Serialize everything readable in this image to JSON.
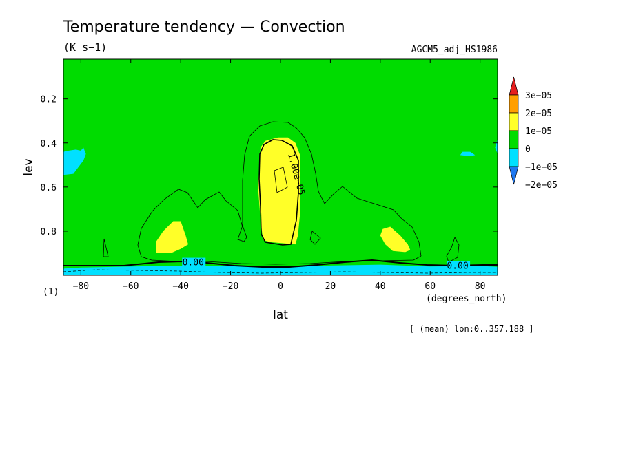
{
  "chart_data": {
    "type": "heatmap",
    "title": "Temperature tendency — Convection",
    "units": "(K s−1)",
    "dataset": "AGCM5_adj_HS1986",
    "xlabel": "lat",
    "xunits": "(degrees_north)",
    "ylabel": "lev",
    "yunits": "(1)",
    "footnote": "[ (mean) lon:0..357.188 ]",
    "xlim": [
      -87,
      87
    ],
    "ylim": [
      1.0,
      0.02
    ],
    "x_ticks": [
      -80,
      -60,
      -40,
      -20,
      0,
      20,
      40,
      60,
      80
    ],
    "x_tick_labels": [
      "−80",
      "−60",
      "−40",
      "−20",
      "0",
      "20",
      "40",
      "60",
      "80"
    ],
    "y_ticks": [
      0.2,
      0.4,
      0.6,
      0.8
    ],
    "y_tick_labels": [
      "0.2",
      "0.4",
      "0.6",
      "0.8"
    ],
    "colorbar": {
      "levels": [
        -2e-05,
        -1e-05,
        0,
        1e-05,
        2e-05,
        3e-05
      ],
      "labels": [
        "3e−05",
        "2e−05",
        "1e−05",
        "0",
        "−1e−05",
        "−2e−05"
      ],
      "colors": [
        "#1e78f0",
        "#00e0ff",
        "#00dc00",
        "#ffff28",
        "#ff9f00",
        "#e61e1e"
      ]
    },
    "contour_labels": [
      {
        "text": "1.00e−05",
        "lat": 3,
        "lev": 0.45
      },
      {
        "text": "0.00",
        "lat": -35,
        "lev": 0.955
      },
      {
        "text": "0.00",
        "lat": 71,
        "lev": 0.97
      }
    ],
    "regions": [
      {
        "class": "1e-05 to 2e-05",
        "color": "#ffff28",
        "poly": [
          [
            -8,
            0.42
          ],
          [
            -6,
            0.39
          ],
          [
            -1,
            0.375
          ],
          [
            3,
            0.375
          ],
          [
            6,
            0.4
          ],
          [
            8,
            0.46
          ],
          [
            8,
            0.55
          ],
          [
            8,
            0.7
          ],
          [
            7,
            0.82
          ],
          [
            6,
            0.86
          ],
          [
            -4,
            0.85
          ],
          [
            -7,
            0.84
          ],
          [
            -8,
            0.75
          ],
          [
            -9,
            0.6
          ]
        ]
      },
      {
        "class": "1e-05 to 2e-05",
        "color": "#ffff28",
        "poly": [
          [
            -50,
            0.9
          ],
          [
            -50,
            0.85
          ],
          [
            -47,
            0.8
          ],
          [
            -43,
            0.755
          ],
          [
            -40,
            0.755
          ],
          [
            -38,
            0.82
          ],
          [
            -37,
            0.86
          ],
          [
            -40,
            0.88
          ],
          [
            -44,
            0.9
          ]
        ]
      },
      {
        "class": "1e-05 to 2e-05",
        "color": "#ffff28",
        "poly": [
          [
            40,
            0.82
          ],
          [
            41,
            0.79
          ],
          [
            44,
            0.78
          ],
          [
            48,
            0.82
          ],
          [
            51,
            0.86
          ],
          [
            52,
            0.885
          ],
          [
            50,
            0.895
          ],
          [
            45,
            0.89
          ],
          [
            42,
            0.86
          ]
        ]
      },
      {
        "class": "-1e-05 to 0",
        "color": "#00e0ff",
        "poly": [
          [
            -87,
            0.97
          ],
          [
            -80,
            0.965
          ],
          [
            -60,
            0.96
          ],
          [
            -40,
            0.957
          ],
          [
            -20,
            0.958
          ],
          [
            0,
            0.96
          ],
          [
            20,
            0.956
          ],
          [
            40,
            0.952
          ],
          [
            60,
            0.96
          ],
          [
            80,
            0.958
          ],
          [
            87,
            0.962
          ],
          [
            87,
            1.0
          ],
          [
            -87,
            1.0
          ]
        ]
      },
      {
        "class": "-1e-05 to 0",
        "color": "#00e0ff",
        "poly": [
          [
            -87,
            0.44
          ],
          [
            -85,
            0.435
          ],
          [
            -82,
            0.43
          ],
          [
            -80,
            0.435
          ],
          [
            -79,
            0.42
          ],
          [
            -78,
            0.45
          ],
          [
            -79,
            0.48
          ],
          [
            -81,
            0.51
          ],
          [
            -83,
            0.54
          ],
          [
            -87,
            0.545
          ]
        ]
      },
      {
        "class": "-1e-05 to 0",
        "color": "#00e0ff",
        "poly": [
          [
            72,
            0.455
          ],
          [
            73,
            0.44
          ],
          [
            76,
            0.44
          ],
          [
            78,
            0.455
          ],
          [
            76,
            0.46
          ]
        ]
      },
      {
        "class": "-1e-05 to 0",
        "color": "#00e0ff",
        "poly": [
          [
            86,
            0.42
          ],
          [
            87,
            0.38
          ],
          [
            87,
            0.45
          ]
        ]
      }
    ]
  }
}
